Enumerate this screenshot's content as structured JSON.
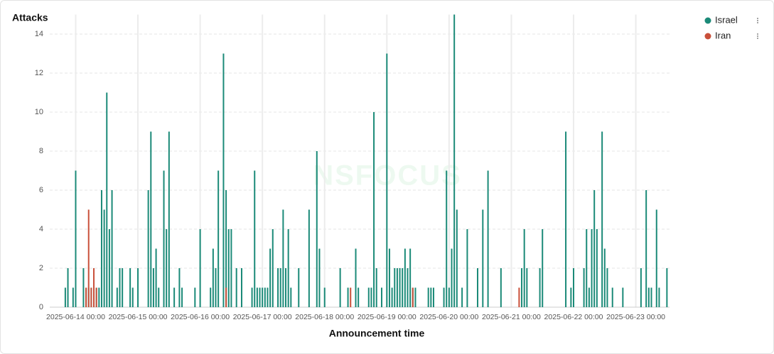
{
  "chart_data": {
    "type": "bar",
    "watermark": "NSFOCUS",
    "y_label": "Attacks",
    "x_label": "Announcement time",
    "xlim": [
      "2025-06-13 14:00",
      "2025-06-23 13:00"
    ],
    "xticks": [
      {
        "value": "2025-06-14 00:00",
        "label": "2025-06-14 00:00"
      },
      {
        "value": "2025-06-15 00:00",
        "label": "2025-06-15 00:00"
      },
      {
        "value": "2025-06-16 00:00",
        "label": "2025-06-16 00:00"
      },
      {
        "value": "2025-06-17 00:00",
        "label": "2025-06-17 00:00"
      },
      {
        "value": "2025-06-18 00:00",
        "label": "2025-06-18 00:00"
      },
      {
        "value": "2025-06-19 00:00",
        "label": "2025-06-19 00:00"
      },
      {
        "value": "2025-06-20 00:00",
        "label": "2025-06-20 00:00"
      },
      {
        "value": "2025-06-21 00:00",
        "label": "2025-06-21 00:00"
      },
      {
        "value": "2025-06-22 00:00",
        "label": "2025-06-22 00:00"
      },
      {
        "value": "2025-06-23 00:00",
        "label": "2025-06-23 00:00"
      }
    ],
    "ylim": [
      0,
      15
    ],
    "yticks": [
      0,
      2,
      4,
      6,
      8,
      10,
      12,
      14
    ],
    "grid": true,
    "legend": "top-right",
    "series": [
      {
        "name": "Israel",
        "color": "#1b8a78",
        "x": [
          "2025-06-13 20:00",
          "2025-06-13 21:00",
          "2025-06-13 23:00",
          "2025-06-14 00:00",
          "2025-06-14 03:00",
          "2025-06-14 04:00",
          "2025-06-14 05:00",
          "2025-06-14 06:00",
          "2025-06-14 07:00",
          "2025-06-14 08:00",
          "2025-06-14 09:00",
          "2025-06-14 10:00",
          "2025-06-14 11:00",
          "2025-06-14 12:00",
          "2025-06-14 13:00",
          "2025-06-14 14:00",
          "2025-06-14 16:00",
          "2025-06-14 17:00",
          "2025-06-14 18:00",
          "2025-06-14 21:00",
          "2025-06-14 22:00",
          "2025-06-15 00:00",
          "2025-06-15 04:00",
          "2025-06-15 05:00",
          "2025-06-15 06:00",
          "2025-06-15 07:00",
          "2025-06-15 08:00",
          "2025-06-15 10:00",
          "2025-06-15 11:00",
          "2025-06-15 12:00",
          "2025-06-15 14:00",
          "2025-06-15 16:00",
          "2025-06-15 17:00",
          "2025-06-15 22:00",
          "2025-06-16 00:00",
          "2025-06-16 04:00",
          "2025-06-16 05:00",
          "2025-06-16 06:00",
          "2025-06-16 07:00",
          "2025-06-16 09:00",
          "2025-06-16 10:00",
          "2025-06-16 11:00",
          "2025-06-16 12:00",
          "2025-06-16 14:00",
          "2025-06-16 16:00",
          "2025-06-16 20:00",
          "2025-06-16 21:00",
          "2025-06-16 22:00",
          "2025-06-16 23:00",
          "2025-06-17 00:00",
          "2025-06-17 01:00",
          "2025-06-17 02:00",
          "2025-06-17 03:00",
          "2025-06-17 04:00",
          "2025-06-17 06:00",
          "2025-06-17 07:00",
          "2025-06-17 08:00",
          "2025-06-17 09:00",
          "2025-06-17 10:00",
          "2025-06-17 11:00",
          "2025-06-17 14:00",
          "2025-06-17 18:00",
          "2025-06-17 21:00",
          "2025-06-17 22:00",
          "2025-06-18 00:00",
          "2025-06-18 06:00",
          "2025-06-18 09:00",
          "2025-06-18 12:00",
          "2025-06-18 13:00",
          "2025-06-18 17:00",
          "2025-06-18 18:00",
          "2025-06-18 19:00",
          "2025-06-18 20:00",
          "2025-06-18 22:00",
          "2025-06-19 00:00",
          "2025-06-19 01:00",
          "2025-06-19 02:00",
          "2025-06-19 03:00",
          "2025-06-19 04:00",
          "2025-06-19 05:00",
          "2025-06-19 06:00",
          "2025-06-19 07:00",
          "2025-06-19 08:00",
          "2025-06-19 09:00",
          "2025-06-19 10:00",
          "2025-06-19 11:00",
          "2025-06-19 16:00",
          "2025-06-19 17:00",
          "2025-06-19 18:00",
          "2025-06-19 22:00",
          "2025-06-19 23:00",
          "2025-06-20 00:00",
          "2025-06-20 01:00",
          "2025-06-20 02:00",
          "2025-06-20 03:00",
          "2025-06-20 05:00",
          "2025-06-20 07:00",
          "2025-06-20 11:00",
          "2025-06-20 13:00",
          "2025-06-20 15:00",
          "2025-06-20 20:00",
          "2025-06-21 04:00",
          "2025-06-21 05:00",
          "2025-06-21 06:00",
          "2025-06-21 11:00",
          "2025-06-21 12:00",
          "2025-06-21 21:00",
          "2025-06-21 23:00",
          "2025-06-22 00:00",
          "2025-06-22 04:00",
          "2025-06-22 05:00",
          "2025-06-22 06:00",
          "2025-06-22 07:00",
          "2025-06-22 08:00",
          "2025-06-22 09:00",
          "2025-06-22 11:00",
          "2025-06-22 12:00",
          "2025-06-22 13:00",
          "2025-06-22 15:00",
          "2025-06-22 19:00",
          "2025-06-23 02:00",
          "2025-06-23 04:00",
          "2025-06-23 05:00",
          "2025-06-23 06:00",
          "2025-06-23 08:00",
          "2025-06-23 09:00",
          "2025-06-23 12:00"
        ],
        "values": [
          1,
          2,
          1,
          7,
          2,
          1,
          1,
          1,
          1,
          1,
          1,
          6,
          5,
          11,
          4,
          6,
          1,
          2,
          2,
          2,
          1,
          2,
          6,
          9,
          2,
          3,
          1,
          7,
          4,
          9,
          1,
          2,
          1,
          1,
          4,
          1,
          3,
          2,
          7,
          13,
          6,
          4,
          4,
          2,
          2,
          1,
          7,
          1,
          1,
          1,
          1,
          1,
          3,
          4,
          2,
          2,
          5,
          2,
          4,
          1,
          2,
          5,
          8,
          3,
          1,
          2,
          1,
          3,
          1,
          1,
          1,
          10,
          2,
          1,
          13,
          3,
          1,
          2,
          2,
          2,
          2,
          3,
          2,
          3,
          1,
          1,
          1,
          1,
          1,
          1,
          7,
          1,
          3,
          15,
          5,
          1,
          4,
          2,
          5,
          7,
          2,
          2,
          4,
          2,
          2,
          4,
          9,
          1,
          2,
          2,
          4,
          1,
          4,
          6,
          4,
          9,
          3,
          2,
          1,
          1,
          2,
          6,
          1,
          1,
          5,
          1,
          2
        ]
      },
      {
        "name": "Iran",
        "color": "#c9503a",
        "x": [
          "2025-06-14 04:00",
          "2025-06-14 05:00",
          "2025-06-14 06:00",
          "2025-06-14 07:00",
          "2025-06-14 08:00",
          "2025-06-16 10:00",
          "2025-06-18 10:00",
          "2025-06-19 10:00",
          "2025-06-21 03:00"
        ],
        "values": [
          1,
          5,
          1,
          2,
          1,
          1,
          1,
          1,
          1
        ]
      }
    ]
  }
}
